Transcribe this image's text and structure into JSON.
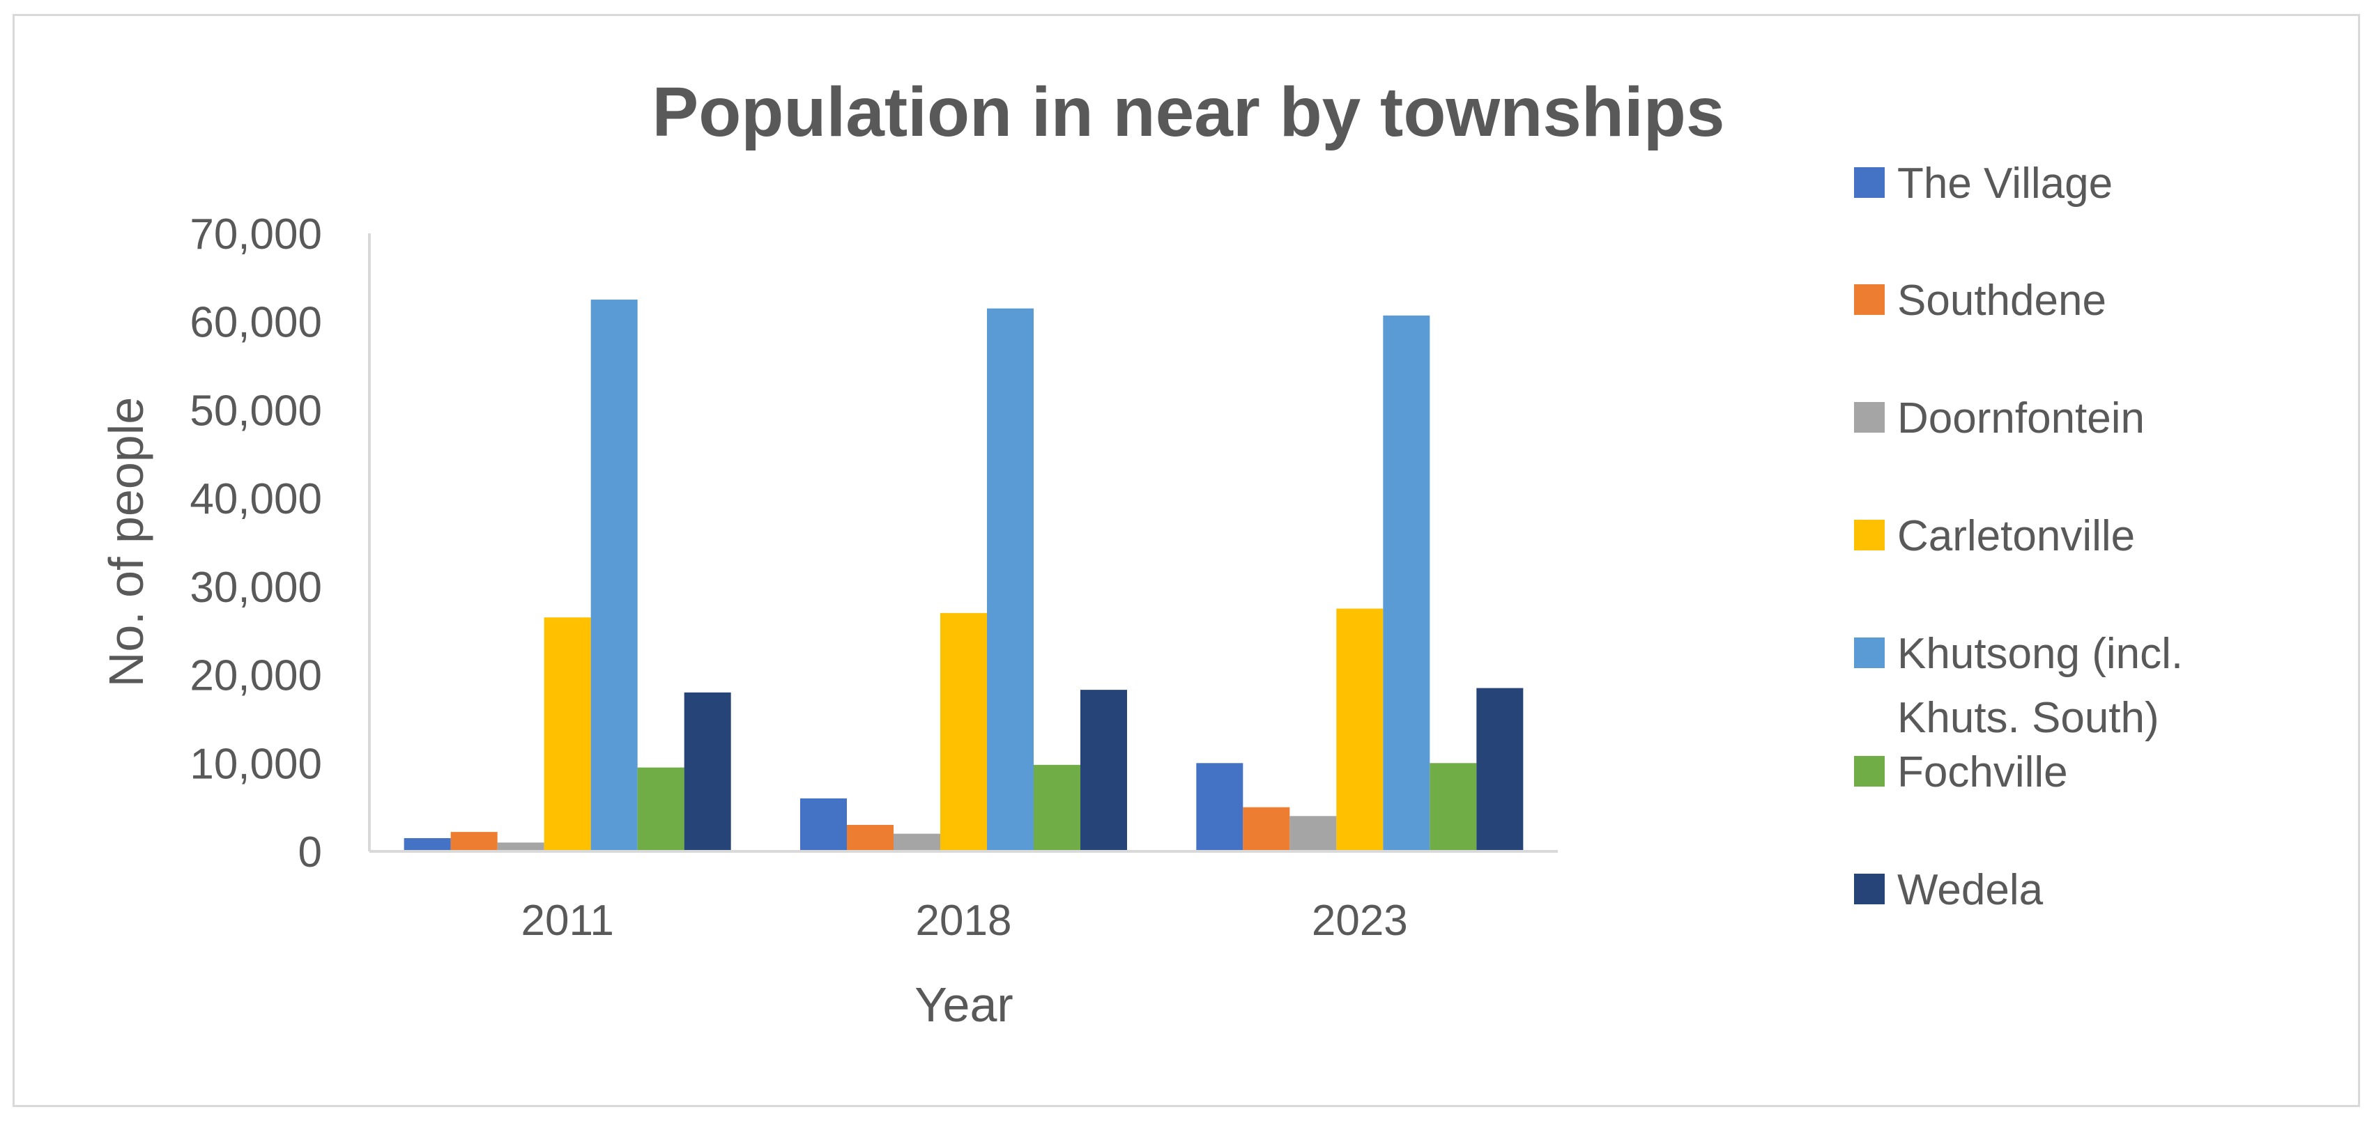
{
  "chart_data": {
    "type": "bar",
    "title": "Population in near by townships",
    "xlabel": "Year",
    "ylabel": "No. of people",
    "categories": [
      "2011",
      "2018",
      "2023"
    ],
    "ylim": [
      0,
      70000
    ],
    "yticks": [
      0,
      10000,
      20000,
      30000,
      40000,
      50000,
      60000,
      70000
    ],
    "ytick_labels": [
      "0",
      "10,000",
      "20,000",
      "30,000",
      "40,000",
      "50,000",
      "60,000",
      "70,000"
    ],
    "grid": false,
    "legend_position": "right",
    "series": [
      {
        "name": "The Village",
        "color": "#4472c4",
        "values": [
          1500,
          6000,
          10000
        ]
      },
      {
        "name": "Southdene",
        "color": "#ed7d31",
        "values": [
          2200,
          3000,
          5000
        ]
      },
      {
        "name": "Doornfontein",
        "color": "#a5a5a5",
        "values": [
          1000,
          2000,
          4000
        ]
      },
      {
        "name": "Carletonville",
        "color": "#ffc000",
        "values": [
          26500,
          27000,
          27500
        ]
      },
      {
        "name": "Khutsong (incl. Khuts. South)",
        "legend_lines": [
          "Khutsong (incl.",
          "Khuts. South)"
        ],
        "color": "#5b9bd5",
        "values": [
          62500,
          61500,
          60700
        ]
      },
      {
        "name": "Fochville",
        "color": "#70ad47",
        "values": [
          9500,
          9800,
          10000
        ]
      },
      {
        "name": "Wedela",
        "color": "#264478",
        "values": [
          18000,
          18300,
          18500
        ]
      }
    ]
  }
}
